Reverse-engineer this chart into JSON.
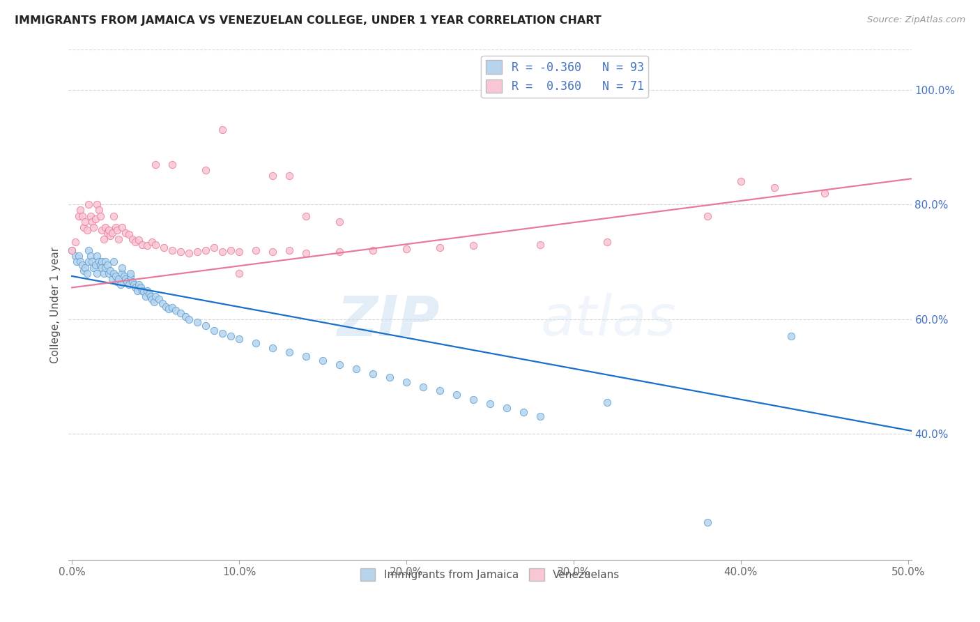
{
  "title": "IMMIGRANTS FROM JAMAICA VS VENEZUELAN COLLEGE, UNDER 1 YEAR CORRELATION CHART",
  "source": "Source: ZipAtlas.com",
  "ylabel": "College, Under 1 year",
  "x_ticks": [
    "0.0%",
    "10.0%",
    "20.0%",
    "30.0%",
    "40.0%",
    "50.0%"
  ],
  "x_tick_vals": [
    0.0,
    0.1,
    0.2,
    0.3,
    0.4,
    0.5
  ],
  "y_ticks_right": [
    "40.0%",
    "60.0%",
    "80.0%",
    "100.0%"
  ],
  "y_tick_vals_right": [
    0.4,
    0.6,
    0.8,
    1.0
  ],
  "xlim": [
    -0.002,
    0.502
  ],
  "ylim": [
    0.18,
    1.07
  ],
  "legend_entries": [
    {
      "label_r": "R = ",
      "label_rval": "-0.360",
      "label_n": "   N = ",
      "label_nval": "93",
      "color": "#b8d4ed"
    },
    {
      "label_r": "R =  ",
      "label_rval": "0.360",
      "label_n": "   N = ",
      "label_nval": "71",
      "color": "#f9c6d3"
    }
  ],
  "legend_bottom": [
    "Immigrants from Jamaica",
    "Venezuelans"
  ],
  "legend_bottom_colors": [
    "#b8d4ed",
    "#f9c6d3"
  ],
  "trendline_jamaica": {
    "x": [
      0.0,
      0.502
    ],
    "y": [
      0.675,
      0.405
    ],
    "color": "#1a6fca",
    "linewidth": 1.6
  },
  "trendline_venezuela": {
    "x": [
      0.0,
      0.502
    ],
    "y": [
      0.655,
      0.845
    ],
    "color": "#e8799a",
    "linewidth": 1.6
  },
  "watermark_zip": "ZIP",
  "watermark_atlas": "atlas",
  "background_color": "#ffffff",
  "grid_color": "#cccccc",
  "jamaica_scatter": {
    "x": [
      0.0,
      0.002,
      0.003,
      0.004,
      0.005,
      0.006,
      0.007,
      0.008,
      0.009,
      0.01,
      0.01,
      0.011,
      0.012,
      0.013,
      0.014,
      0.015,
      0.015,
      0.016,
      0.017,
      0.018,
      0.018,
      0.019,
      0.02,
      0.02,
      0.021,
      0.022,
      0.023,
      0.024,
      0.025,
      0.025,
      0.026,
      0.027,
      0.028,
      0.029,
      0.03,
      0.03,
      0.031,
      0.032,
      0.033,
      0.034,
      0.035,
      0.035,
      0.036,
      0.037,
      0.038,
      0.039,
      0.04,
      0.041,
      0.042,
      0.043,
      0.044,
      0.045,
      0.046,
      0.047,
      0.048,
      0.049,
      0.05,
      0.052,
      0.054,
      0.056,
      0.058,
      0.06,
      0.062,
      0.065,
      0.068,
      0.07,
      0.075,
      0.08,
      0.085,
      0.09,
      0.095,
      0.1,
      0.11,
      0.12,
      0.13,
      0.14,
      0.15,
      0.16,
      0.17,
      0.18,
      0.19,
      0.2,
      0.21,
      0.22,
      0.23,
      0.24,
      0.25,
      0.26,
      0.27,
      0.28,
      0.32,
      0.38,
      0.43
    ],
    "y": [
      0.72,
      0.71,
      0.7,
      0.71,
      0.7,
      0.695,
      0.685,
      0.69,
      0.68,
      0.72,
      0.7,
      0.71,
      0.7,
      0.69,
      0.695,
      0.71,
      0.68,
      0.7,
      0.695,
      0.7,
      0.69,
      0.68,
      0.7,
      0.69,
      0.695,
      0.68,
      0.685,
      0.67,
      0.68,
      0.7,
      0.675,
      0.665,
      0.67,
      0.66,
      0.68,
      0.69,
      0.675,
      0.67,
      0.665,
      0.66,
      0.675,
      0.68,
      0.665,
      0.66,
      0.655,
      0.65,
      0.66,
      0.655,
      0.65,
      0.648,
      0.64,
      0.65,
      0.645,
      0.64,
      0.635,
      0.63,
      0.64,
      0.635,
      0.628,
      0.622,
      0.618,
      0.62,
      0.615,
      0.61,
      0.605,
      0.6,
      0.595,
      0.588,
      0.58,
      0.575,
      0.57,
      0.565,
      0.558,
      0.55,
      0.542,
      0.535,
      0.528,
      0.52,
      0.513,
      0.505,
      0.498,
      0.49,
      0.482,
      0.475,
      0.468,
      0.46,
      0.452,
      0.445,
      0.438,
      0.43,
      0.455,
      0.245,
      0.57
    ],
    "color": "#b8d4ed",
    "edge_color": "#5a9fd4",
    "size": 55,
    "alpha": 0.85
  },
  "venezuela_scatter": {
    "x": [
      0.0,
      0.002,
      0.004,
      0.005,
      0.006,
      0.007,
      0.008,
      0.009,
      0.01,
      0.011,
      0.012,
      0.013,
      0.014,
      0.015,
      0.016,
      0.017,
      0.018,
      0.019,
      0.02,
      0.021,
      0.022,
      0.023,
      0.024,
      0.025,
      0.026,
      0.027,
      0.028,
      0.03,
      0.032,
      0.034,
      0.036,
      0.038,
      0.04,
      0.042,
      0.045,
      0.048,
      0.05,
      0.055,
      0.06,
      0.065,
      0.07,
      0.075,
      0.08,
      0.085,
      0.09,
      0.095,
      0.1,
      0.11,
      0.12,
      0.13,
      0.14,
      0.16,
      0.18,
      0.2,
      0.22,
      0.24,
      0.28,
      0.32,
      0.38,
      0.4,
      0.42,
      0.45,
      0.1,
      0.09,
      0.06,
      0.05,
      0.08,
      0.12,
      0.13,
      0.14,
      0.16
    ],
    "y": [
      0.72,
      0.735,
      0.78,
      0.79,
      0.78,
      0.76,
      0.77,
      0.755,
      0.8,
      0.78,
      0.77,
      0.76,
      0.775,
      0.8,
      0.79,
      0.78,
      0.755,
      0.74,
      0.76,
      0.75,
      0.755,
      0.745,
      0.75,
      0.78,
      0.76,
      0.755,
      0.74,
      0.76,
      0.75,
      0.748,
      0.74,
      0.735,
      0.738,
      0.73,
      0.728,
      0.735,
      0.73,
      0.725,
      0.72,
      0.718,
      0.715,
      0.718,
      0.72,
      0.725,
      0.718,
      0.72,
      0.718,
      0.72,
      0.718,
      0.72,
      0.715,
      0.718,
      0.72,
      0.722,
      0.725,
      0.728,
      0.73,
      0.735,
      0.78,
      0.84,
      0.83,
      0.82,
      0.68,
      0.93,
      0.87,
      0.87,
      0.86,
      0.85,
      0.85,
      0.78,
      0.77
    ],
    "color": "#f9c6d3",
    "edge_color": "#e8799a",
    "size": 55,
    "alpha": 0.85
  }
}
